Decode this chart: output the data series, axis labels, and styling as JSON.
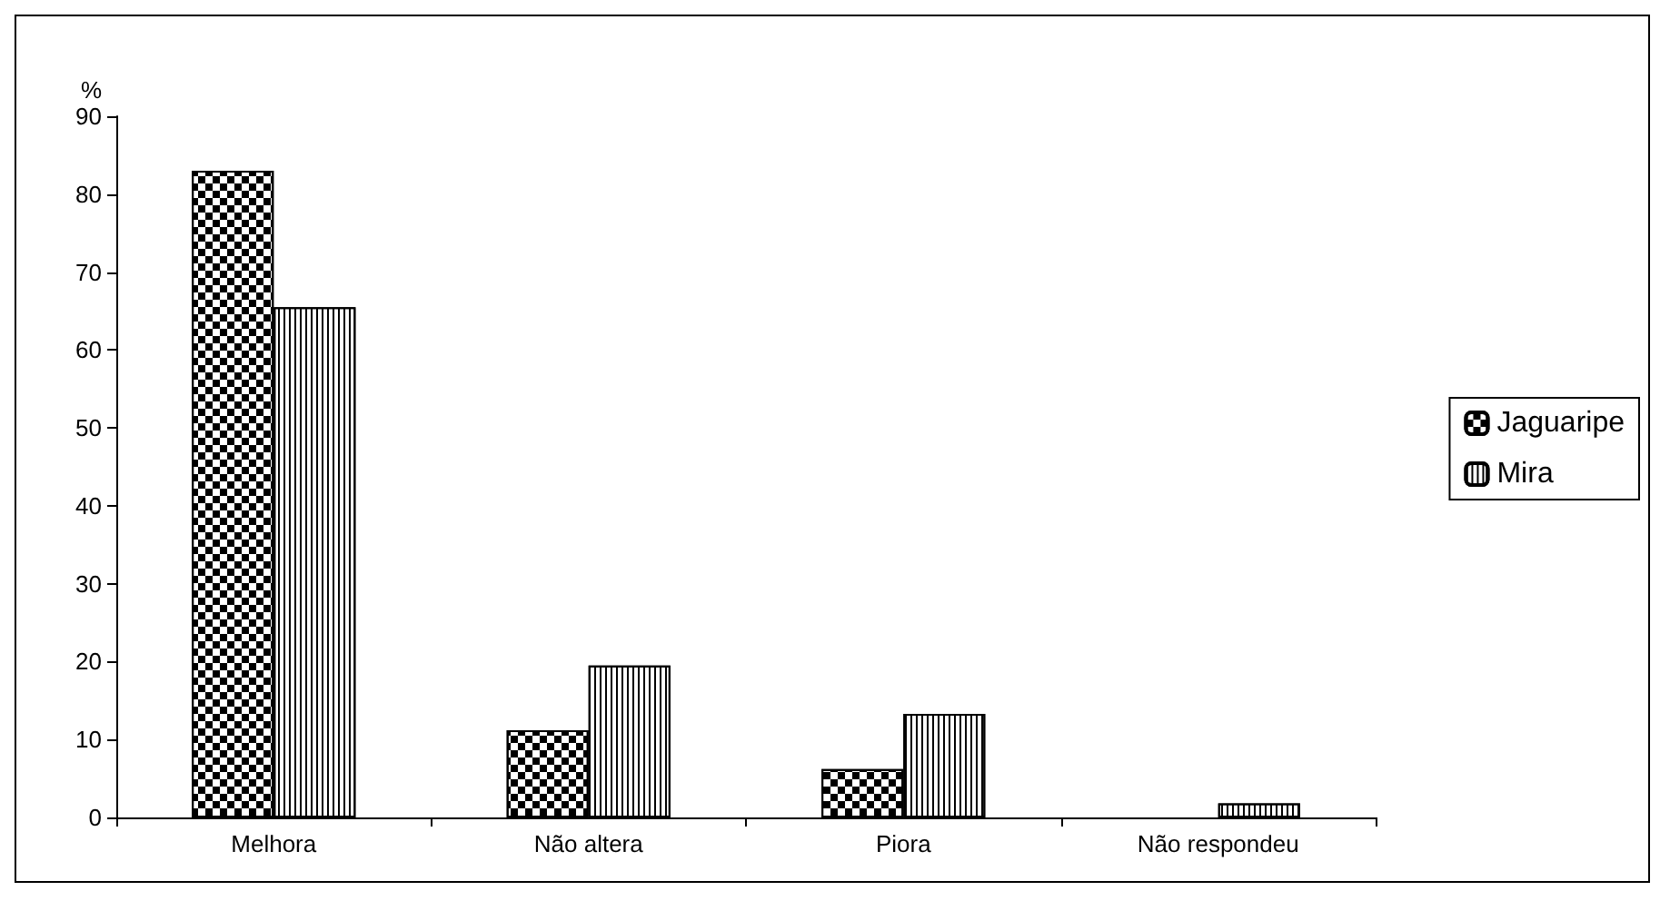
{
  "chart_data": {
    "type": "bar",
    "ylabel": "%",
    "categories": [
      "Melhora",
      "Não altera",
      "Piora",
      "Não respondeu"
    ],
    "series": [
      {
        "name": "Jaguaripe",
        "color": "#000000",
        "values": [
          83,
          11.2,
          6.2,
          null
        ]
      },
      {
        "name": "Mira",
        "color": "#000000",
        "values": [
          65.5,
          19.5,
          13.3,
          1.8
        ]
      }
    ],
    "ylim": [
      0,
      90
    ],
    "yticks": [
      0,
      10,
      20,
      30,
      40,
      50,
      60,
      70,
      80,
      90
    ],
    "grid": false,
    "legend": "right"
  }
}
